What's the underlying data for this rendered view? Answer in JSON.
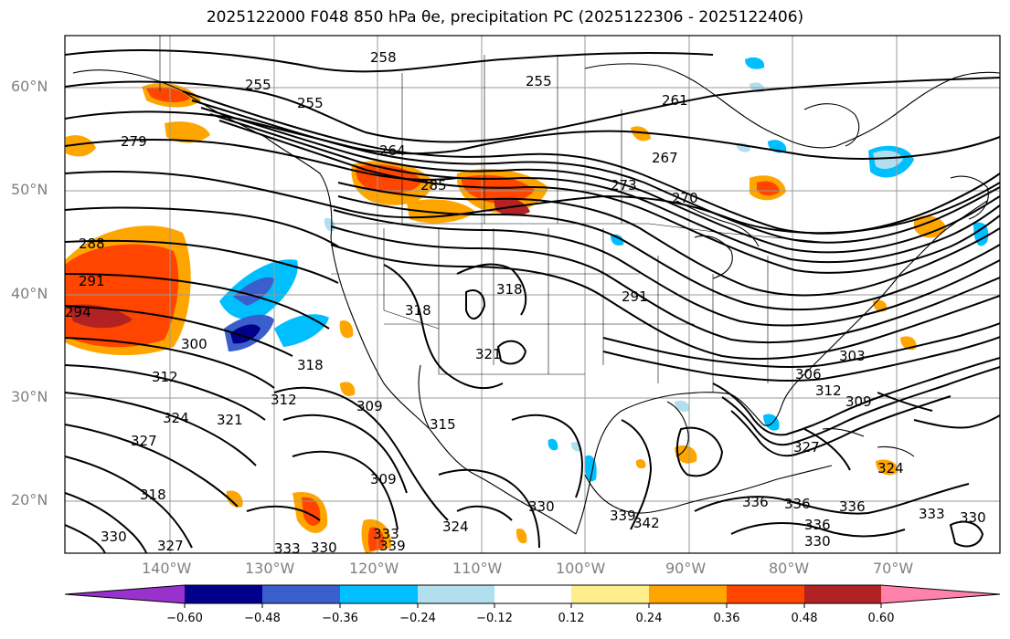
{
  "title_text": "2025122000 F048 850 hPa θe, precipitation PC (2025122306 - 2025122406)",
  "lat_labels": [
    "60°N",
    "50°N",
    "40°N",
    "30°N",
    "20°N"
  ],
  "lon_labels": [
    "140°W",
    "130°W",
    "120°W",
    "110°W",
    "100°W",
    "90°W",
    "80°W",
    "70°W"
  ],
  "colorbar": {
    "ticks": [
      "−0.60",
      "−0.48",
      "−0.36",
      "−0.24",
      "−0.12",
      "0.12",
      "0.24",
      "0.36",
      "0.48",
      "0.60"
    ],
    "colors": [
      "#9932cc",
      "#00008b",
      "#3a5fcd",
      "#00bfff",
      "#b2dfee",
      "#ffffff",
      "#ffec8b",
      "#ffa500",
      "#ff4500",
      "#b22222",
      "#ff82ab"
    ]
  },
  "contour_labels": [
    "258",
    "255",
    "255",
    "255",
    "261",
    "279",
    "264",
    "267",
    "270",
    "273",
    "285",
    "288",
    "291",
    "294",
    "300",
    "312",
    "318",
    "318",
    "318",
    "321",
    "321",
    "324",
    "327",
    "318",
    "312",
    "309",
    "315",
    "309",
    "291",
    "306",
    "312",
    "309",
    "303",
    "324",
    "336",
    "336",
    "336",
    "339",
    "342",
    "336",
    "333",
    "330",
    "327",
    "330",
    "333",
    "330",
    "324",
    "330",
    "333",
    "339",
    "327",
    "330"
  ]
}
